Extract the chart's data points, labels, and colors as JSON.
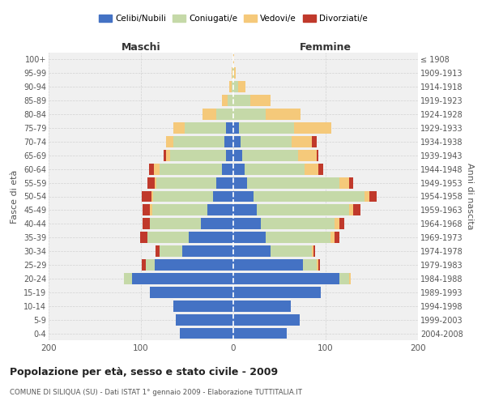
{
  "age_groups": [
    "0-4",
    "5-9",
    "10-14",
    "15-19",
    "20-24",
    "25-29",
    "30-34",
    "35-39",
    "40-44",
    "45-49",
    "50-54",
    "55-59",
    "60-64",
    "65-69",
    "70-74",
    "75-79",
    "80-84",
    "85-89",
    "90-94",
    "95-99",
    "100+"
  ],
  "birth_years": [
    "2004-2008",
    "1999-2003",
    "1994-1998",
    "1989-1993",
    "1984-1988",
    "1979-1983",
    "1974-1978",
    "1969-1973",
    "1964-1968",
    "1959-1963",
    "1954-1958",
    "1949-1953",
    "1944-1948",
    "1939-1943",
    "1934-1938",
    "1929-1933",
    "1924-1928",
    "1919-1923",
    "1914-1918",
    "1909-1913",
    "≤ 1908"
  ],
  "male_celibi": [
    58,
    62,
    65,
    90,
    110,
    85,
    55,
    48,
    35,
    28,
    22,
    18,
    12,
    8,
    10,
    8,
    0,
    0,
    0,
    0,
    0
  ],
  "male_coniugati": [
    0,
    0,
    0,
    0,
    8,
    10,
    25,
    45,
    55,
    60,
    65,
    65,
    68,
    60,
    55,
    45,
    18,
    6,
    2,
    1,
    0
  ],
  "male_vedovi": [
    0,
    0,
    0,
    0,
    0,
    0,
    0,
    0,
    0,
    2,
    2,
    2,
    6,
    5,
    8,
    12,
    15,
    6,
    2,
    1,
    0
  ],
  "male_divorziati": [
    0,
    0,
    0,
    0,
    0,
    4,
    4,
    8,
    8,
    8,
    10,
    8,
    5,
    2,
    0,
    0,
    0,
    0,
    0,
    0,
    0
  ],
  "female_celibi": [
    58,
    72,
    62,
    95,
    115,
    75,
    40,
    35,
    30,
    25,
    22,
    15,
    12,
    10,
    8,
    6,
    0,
    0,
    0,
    0,
    0
  ],
  "female_coniugati": [
    0,
    0,
    0,
    0,
    10,
    15,
    45,
    70,
    80,
    100,
    120,
    100,
    65,
    60,
    55,
    60,
    35,
    18,
    5,
    1,
    0
  ],
  "female_vedovi": [
    0,
    0,
    0,
    0,
    2,
    2,
    2,
    5,
    5,
    5,
    5,
    10,
    15,
    20,
    22,
    40,
    38,
    22,
    8,
    2,
    1
  ],
  "female_divorziati": [
    0,
    0,
    0,
    0,
    0,
    2,
    2,
    5,
    5,
    8,
    8,
    5,
    5,
    2,
    5,
    0,
    0,
    0,
    0,
    0,
    0
  ],
  "color_celibi": "#4472c4",
  "color_coniugati": "#c5d9a8",
  "color_vedovi": "#f5c97a",
  "color_divorziati": "#c0392b",
  "title": "Popolazione per età, sesso e stato civile - 2009",
  "subtitle": "COMUNE DI SILIQUA (SU) - Dati ISTAT 1° gennaio 2009 - Elaborazione TUTTITALIA.IT",
  "xlabel_left": "Maschi",
  "xlabel_right": "Femmine",
  "ylabel_left": "Fasce di età",
  "ylabel_right": "Anni di nascita",
  "xlim": 200,
  "bg_color": "#ffffff",
  "plot_bg_color": "#f0f0f0",
  "grid_color": "#cccccc"
}
